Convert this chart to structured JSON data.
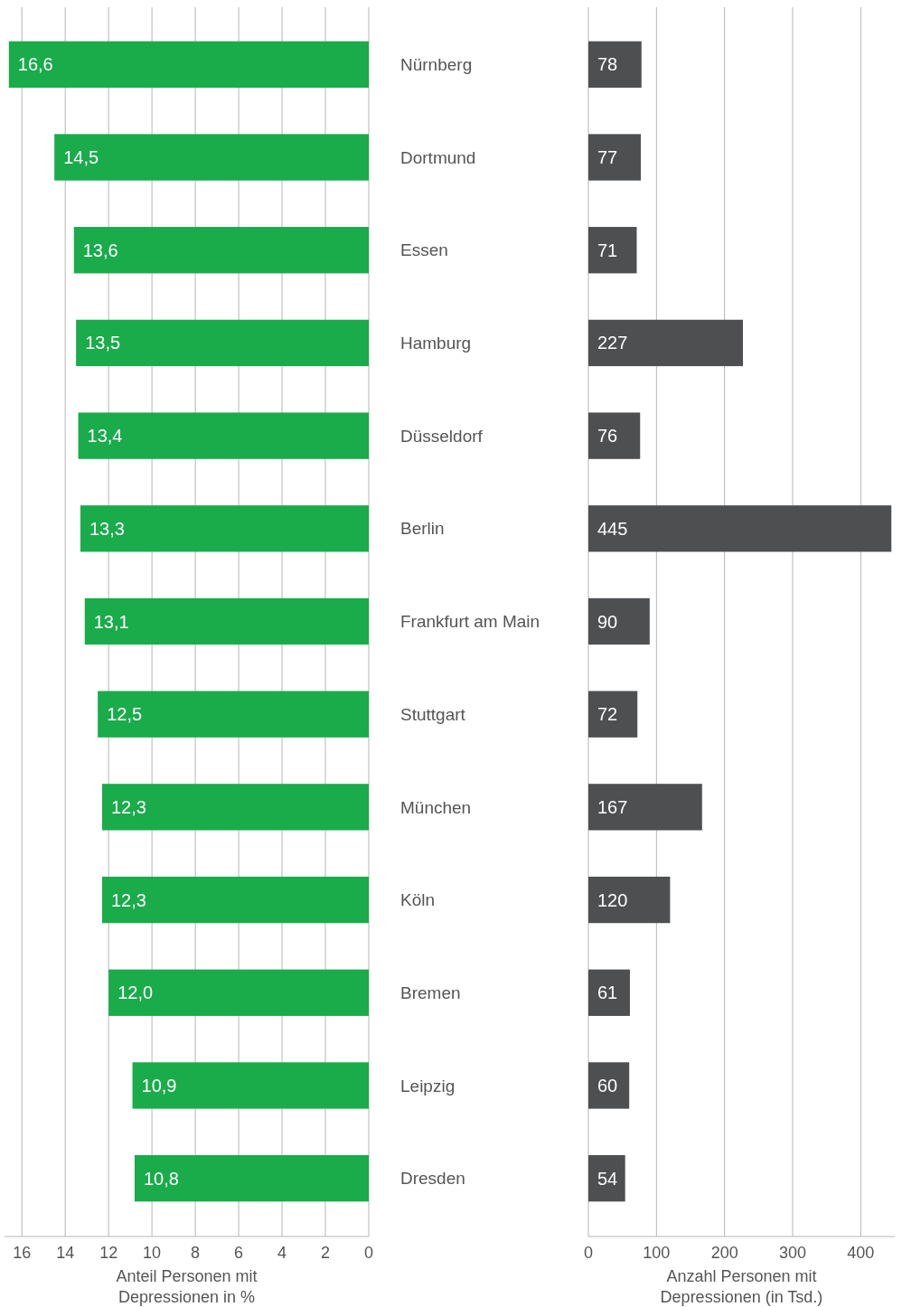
{
  "chart_data": [
    {
      "type": "bar",
      "orientation": "horizontal",
      "categories": [
        "Nürnberg",
        "Dortmund",
        "Essen",
        "Hamburg",
        "Düsseldorf",
        "Berlin",
        "Frankfurt am Main",
        "Stuttgart",
        "München",
        "Köln",
        "Bremen",
        "Leipzig",
        "Dresden"
      ],
      "values": [
        16.6,
        14.5,
        13.6,
        13.5,
        13.4,
        13.3,
        13.1,
        12.5,
        12.3,
        12.3,
        12.0,
        10.9,
        10.8
      ],
      "value_labels": [
        "16,6",
        "14,5",
        "13,6",
        "13,5",
        "13,4",
        "13,3",
        "13,1",
        "12,5",
        "12,3",
        "12,3",
        "12,0",
        "10,9",
        "10,8"
      ],
      "color": "#1aab4b",
      "xlim": [
        16.8,
        0
      ],
      "xticks": [
        0,
        2,
        4,
        6,
        8,
        10,
        12,
        14,
        16
      ],
      "xlabel": "Anteil Personen mit Depressionen in %",
      "grid": "x"
    },
    {
      "type": "bar",
      "orientation": "horizontal",
      "values": [
        78,
        77,
        71,
        227,
        76,
        445,
        90,
        72,
        167,
        120,
        61,
        60,
        54
      ],
      "data_labels": true,
      "color": "#4d4f51",
      "xlim": [
        0,
        450
      ],
      "xticks": [
        0,
        100,
        200,
        300,
        400
      ],
      "xlabel": "Anzahl Personen mit Depressionen (in Tsd.)",
      "grid": "x",
      "tick_labels": "x"
    }
  ]
}
